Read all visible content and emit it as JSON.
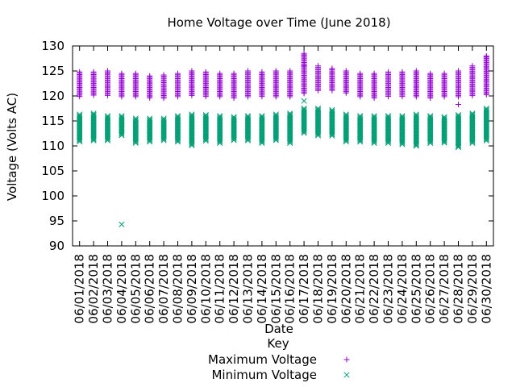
{
  "chart_data": {
    "type": "scatter",
    "title": "Home Voltage over Time (June 2018)",
    "xlabel": "Date",
    "ylabel": "Voltage (Volts AC)",
    "ylim": [
      90,
      130
    ],
    "yticks": [
      90,
      95,
      100,
      105,
      110,
      115,
      120,
      125,
      130
    ],
    "grid": false,
    "legend": {
      "title": "Key",
      "placement": "bottom-center"
    },
    "categories": [
      "06/01/2018",
      "06/02/2018",
      "06/03/2018",
      "06/04/2018",
      "06/05/2018",
      "06/06/2018",
      "06/07/2018",
      "06/08/2018",
      "06/09/2018",
      "06/10/2018",
      "06/11/2018",
      "06/12/2018",
      "06/13/2018",
      "06/14/2018",
      "06/15/2018",
      "06/16/2018",
      "06/17/2018",
      "06/18/2018",
      "06/19/2018",
      "06/20/2018",
      "06/21/2018",
      "06/22/2018",
      "06/23/2018",
      "06/24/2018",
      "06/25/2018",
      "06/26/2018",
      "06/27/2018",
      "06/28/2018",
      "06/29/2018",
      "06/30/2018"
    ],
    "series": [
      {
        "name": "Maximum Voltage",
        "marker": "plus",
        "color": "#9400d3",
        "low": [
          119.8,
          120,
          120,
          119.8,
          119.8,
          119.5,
          119.5,
          119.7,
          120,
          119.7,
          119.8,
          119.5,
          119.7,
          119.7,
          119.8,
          119.8,
          120.5,
          121,
          121,
          120.5,
          119.7,
          119.5,
          119.8,
          119.8,
          119.7,
          119.5,
          119.7,
          119.8,
          120,
          120.2
        ],
        "high": [
          124.8,
          124.8,
          125,
          124.5,
          124.5,
          124,
          124.2,
          124.5,
          125,
          124.8,
          124.5,
          124.5,
          125,
          124.8,
          125,
          125,
          128.5,
          126,
          125.5,
          125,
          124.5,
          124.5,
          124.8,
          124.8,
          125,
          124.5,
          124.5,
          125,
          126,
          128
        ],
        "outliers": [
          [
            16,
            128.2
          ],
          [
            16,
            126
          ],
          [
            27,
            118.3
          ],
          [
            29,
            127.8
          ]
        ]
      },
      {
        "name": "Minimum Voltage",
        "marker": "x",
        "color": "#009e73",
        "low": [
          110.8,
          111,
          111,
          112,
          110.5,
          110.8,
          111,
          110.8,
          110,
          110.8,
          110.5,
          111,
          111,
          110.5,
          111,
          110.5,
          112.5,
          112,
          112,
          110.8,
          110.8,
          110.5,
          110.5,
          110.3,
          110,
          110.5,
          110.5,
          109.5,
          110.5,
          111
        ],
        "high": [
          116.3,
          116.5,
          116,
          116,
          115.5,
          115.5,
          115.5,
          116,
          116.3,
          116.2,
          116,
          115.8,
          116,
          116,
          116.3,
          116.5,
          117.5,
          117.5,
          117.2,
          116.3,
          116,
          116,
          116,
          116,
          116.3,
          116,
          115.8,
          116.2,
          116.5,
          117.5
        ],
        "outliers": [
          [
            3,
            94.3
          ],
          [
            16,
            119
          ],
          [
            27,
            109.8
          ],
          [
            24,
            110
          ]
        ]
      }
    ]
  }
}
